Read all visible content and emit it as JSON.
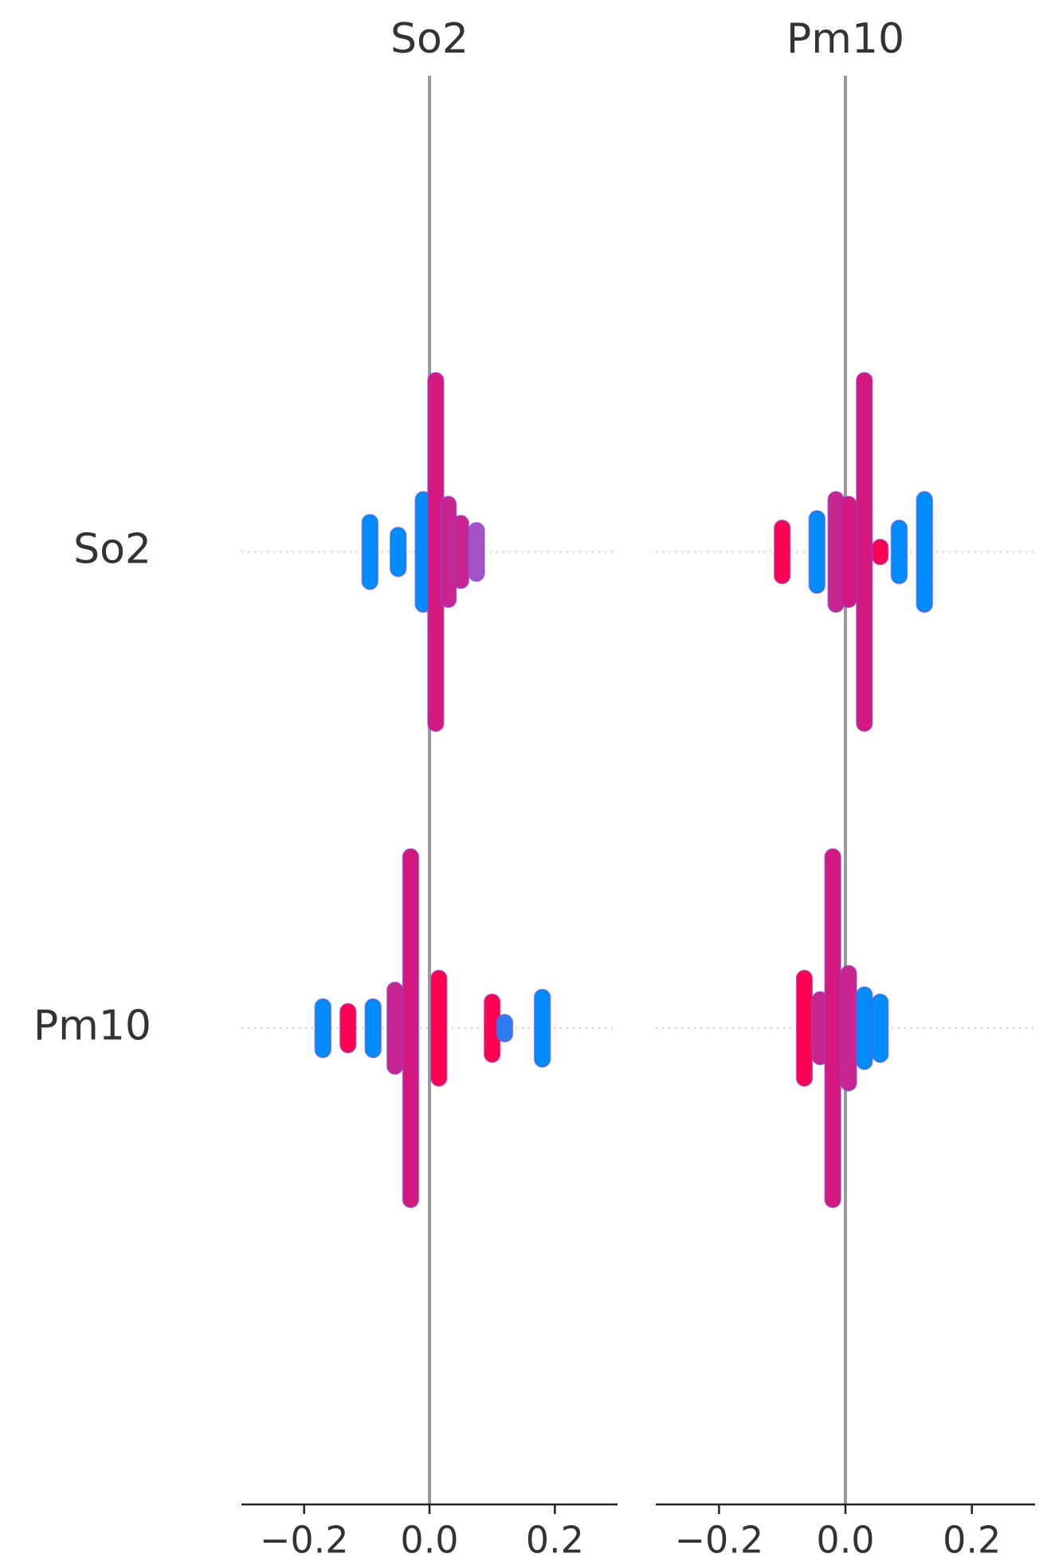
{
  "chart_data": [
    {
      "type": "beeswarm",
      "title": "So2",
      "categories": [
        "So2",
        "Pm10"
      ],
      "xlim": [
        -0.3,
        0.3
      ],
      "xticks": [
        {
          "value": -0.2,
          "label": "−0.2"
        },
        {
          "value": 0,
          "label": "0.0"
        },
        0.2
      ],
      "rows": [
        {
          "x": [
            -0.095,
            -0.05,
            -0.01,
            0.01,
            0.03,
            0.05,
            0.075
          ],
          "spread": [
            0.062,
            0.035,
            0.11,
            0.36,
            0.1,
            0.06,
            0.045
          ],
          "colors": [
            "#008bfb",
            "#008bfb",
            "#008bfb",
            "#d3197f",
            "#c82591",
            "#c82591",
            "#a452c8"
          ]
        },
        {
          "x": [
            -0.17,
            -0.13,
            -0.09,
            -0.055,
            -0.03,
            0.015,
            0.1,
            0.12,
            0.18
          ],
          "spread": [
            0.045,
            0.035,
            0.045,
            0.08,
            0.36,
            0.105,
            0.055,
            0.012,
            0.065
          ],
          "colors": [
            "#008bfb",
            "#ff0052",
            "#008bfb",
            "#c82591",
            "#d3197f",
            "#ff0052",
            "#ff0052",
            "#2d7df0",
            "#008bfb"
          ]
        }
      ]
    },
    {
      "type": "beeswarm",
      "title": "Pm10",
      "xlim": [
        -0.3,
        0.3
      ],
      "xticks": [
        {
          "value": -0.2,
          "label": "−0.2"
        },
        {
          "value": 0,
          "label": "0.0"
        },
        0.2
      ],
      "rows": [
        {
          "x": [
            -0.1,
            -0.045,
            -0.015,
            0.005,
            0.03,
            0.055,
            0.085,
            0.125
          ],
          "spread": [
            0.05,
            0.07,
            0.11,
            0.1,
            0.36,
            0.01,
            0.05,
            0.11
          ],
          "colors": [
            "#ff0052",
            "#008bfb",
            "#c82591",
            "#d3197f",
            "#d3197f",
            "#ff0052",
            "#008bfb",
            "#008bfb"
          ]
        },
        {
          "x": [
            -0.065,
            -0.04,
            -0.02,
            0.005,
            0.03,
            0.055
          ],
          "spread": [
            0.105,
            0.06,
            0.36,
            0.115,
            0.07,
            0.055
          ],
          "colors": [
            "#ff0052",
            "#c82591",
            "#d3197f",
            "#c82591",
            "#008bfb",
            "#008bfb"
          ]
        }
      ]
    }
  ]
}
